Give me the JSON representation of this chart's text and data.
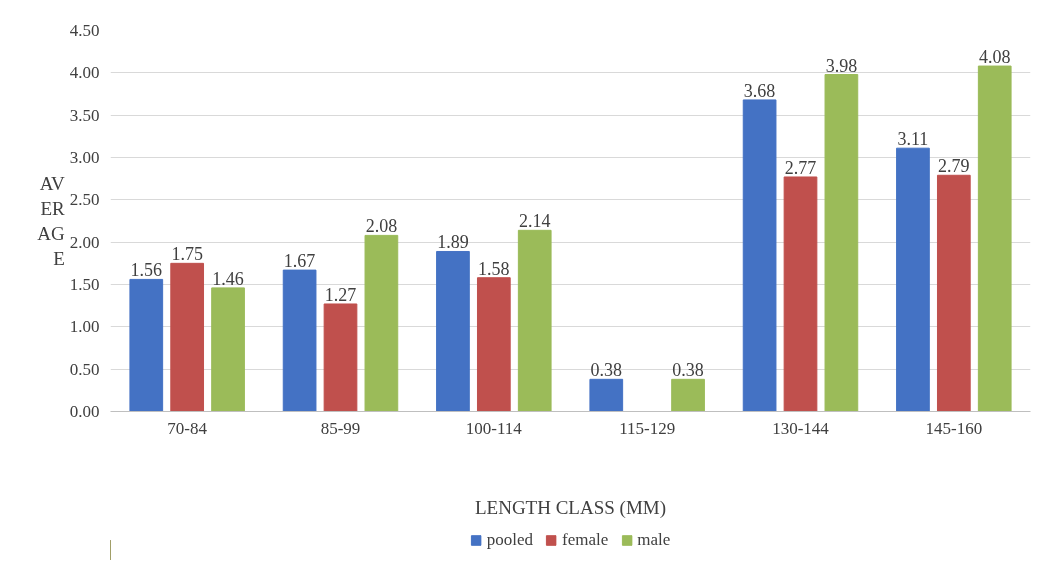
{
  "chart_data": {
    "type": "bar",
    "xlabel": "LENGTH CLASS (MM)",
    "ylabel": "AVERAGE",
    "categories": [
      "70-84",
      "85-99",
      "100-114",
      "115-129",
      "130-144",
      "145-160"
    ],
    "series": [
      {
        "name": "pooled",
        "color": "#4472c4",
        "values": [
          1.56,
          1.67,
          1.89,
          0.38,
          3.68,
          3.11
        ]
      },
      {
        "name": "female",
        "color": "#c0504d",
        "values": [
          1.75,
          1.27,
          1.58,
          null,
          2.77,
          2.79
        ]
      },
      {
        "name": "male",
        "color": "#9bbb59",
        "values": [
          1.46,
          2.08,
          2.14,
          0.38,
          3.98,
          4.08
        ]
      }
    ],
    "ylim": [
      0,
      4.5
    ],
    "yticks": [
      {
        "value": 0,
        "label": "0.00"
      },
      {
        "value": 0.5,
        "label": "0.50"
      },
      {
        "value": 1,
        "label": "1.00"
      },
      {
        "value": 1.5,
        "label": "1.50"
      },
      {
        "value": 2,
        "label": "2.00"
      },
      {
        "value": 2.5,
        "label": "2.50"
      },
      {
        "value": 3,
        "label": "3.00"
      },
      {
        "value": 3.5,
        "label": "3.50"
      },
      {
        "value": 4,
        "label": "4.00"
      },
      {
        "value": 4.5,
        "label": "4.50"
      }
    ],
    "grid": "y",
    "legend": "bottom",
    "data_labels": true
  }
}
